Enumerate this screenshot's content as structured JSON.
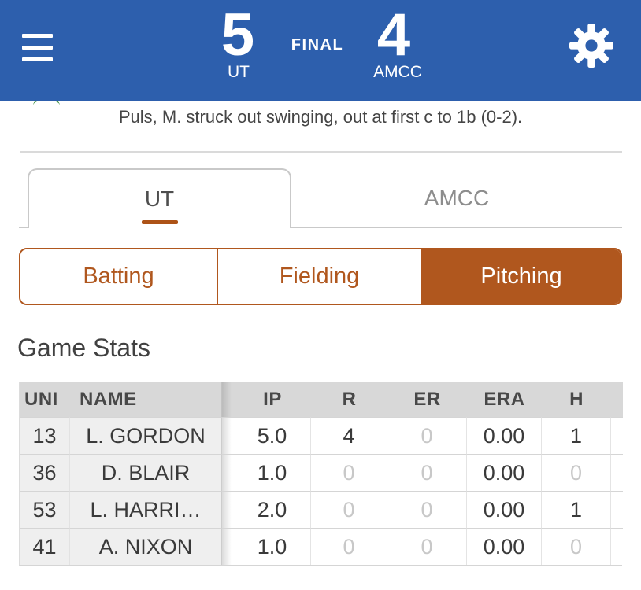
{
  "scoreboard": {
    "home": {
      "score": "5",
      "abbr": "UT"
    },
    "away": {
      "score": "4",
      "abbr": "AMCC"
    },
    "status": "FINAL"
  },
  "play_by_play": {
    "text": "Puls, M. struck out swinging, out at first c to 1b (0-2)."
  },
  "team_tabs": [
    {
      "label": "UT",
      "active": true
    },
    {
      "label": "AMCC",
      "active": false
    }
  ],
  "stat_tabs": [
    {
      "label": "Batting",
      "active": false
    },
    {
      "label": "Fielding",
      "active": false
    },
    {
      "label": "Pitching",
      "active": true
    }
  ],
  "section": {
    "title": "Game Stats"
  },
  "table": {
    "columns": [
      "UNI",
      "NAME",
      "IP",
      "R",
      "ER",
      "ERA",
      "H"
    ],
    "rows": [
      {
        "uni": "13",
        "name": "L. GORDON",
        "ip": "5.0",
        "r": "4",
        "er": "0",
        "era": "0.00",
        "h": "1"
      },
      {
        "uni": "36",
        "name": "D. BLAIR",
        "ip": "1.0",
        "r": "0",
        "er": "0",
        "era": "0.00",
        "h": "0"
      },
      {
        "uni": "53",
        "name": "L. HARRI…",
        "ip": "2.0",
        "r": "0",
        "er": "0",
        "era": "0.00",
        "h": "1"
      },
      {
        "uni": "41",
        "name": "A. NIXON",
        "ip": "1.0",
        "r": "0",
        "er": "0",
        "era": "0.00",
        "h": "0"
      }
    ]
  },
  "icons": {
    "menu": "hamburger-menu-icon",
    "settings": "gear-icon",
    "logo": "partial-team-logo-arc"
  },
  "colors": {
    "header_blue": "#2d5fad",
    "accent_orange": "#b0571e",
    "tab_underline": "#ad5317",
    "muted_value": "#c8c8c8",
    "logo_green": "#3d8f41"
  }
}
